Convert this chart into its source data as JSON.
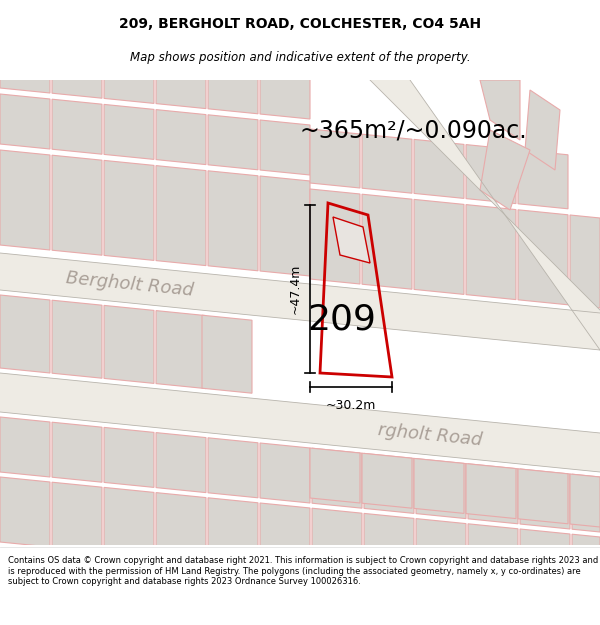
{
  "title_line1": "209, BERGHOLT ROAD, COLCHESTER, CO4 5AH",
  "title_line2": "Map shows position and indicative extent of the property.",
  "area_label": "~365m²/~0.090ac.",
  "property_number": "209",
  "dim_vertical": "~47.4m",
  "dim_horizontal": "~30.2m",
  "road_label_upper": "Bergholt Road",
  "road_label_lower": "rgholt Road",
  "footer_text": "Contains OS data © Crown copyright and database right 2021. This information is subject to Crown copyright and database rights 2023 and is reproduced with the permission of HM Land Registry. The polygons (including the associated geometry, namely x, y co-ordinates) are subject to Crown copyright and database rights 2023 Ordnance Survey 100026316.",
  "map_bg": "#ffffff",
  "footer_bg": "#ffffff",
  "outline_color": "#e8aaaa",
  "highlight_color": "#cc0000",
  "building_fill": "#d8d5d0",
  "road_fill": "#e8e5e0",
  "title_fontsize": 10,
  "subtitle_fontsize": 8.5,
  "area_fontsize": 17,
  "number_fontsize": 26,
  "road_fontsize": 13,
  "dim_fontsize": 9
}
